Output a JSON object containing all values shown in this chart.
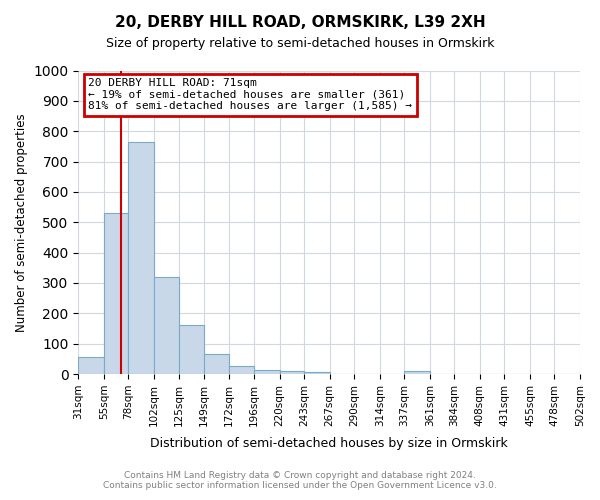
{
  "title": "20, DERBY HILL ROAD, ORMSKIRK, L39 2XH",
  "subtitle": "Size of property relative to semi-detached houses in Ormskirk",
  "xlabel": "Distribution of semi-detached houses by size in Ormskirk",
  "ylabel": "Number of semi-detached properties",
  "footer_line1": "Contains HM Land Registry data © Crown copyright and database right 2024.",
  "footer_line2": "Contains public sector information licensed under the Open Government Licence v3.0.",
  "bin_labels": [
    "31sqm",
    "55sqm",
    "78sqm",
    "102sqm",
    "125sqm",
    "149sqm",
    "172sqm",
    "196sqm",
    "220sqm",
    "243sqm",
    "267sqm",
    "290sqm",
    "314sqm",
    "337sqm",
    "361sqm",
    "384sqm",
    "408sqm",
    "431sqm",
    "455sqm",
    "478sqm",
    "502sqm"
  ],
  "bar_values": [
    55,
    530,
    765,
    320,
    160,
    65,
    28,
    12,
    10,
    8,
    0,
    0,
    0,
    10,
    0,
    0,
    0,
    0,
    0,
    0
  ],
  "bar_color": "#c8d8e8",
  "bar_edge_color": "#7aaac8",
  "grid_color": "#d0d8e0",
  "property_size": 71,
  "property_line_color": "#cc0000",
  "annotation_text": "20 DERBY HILL ROAD: 71sqm\n← 19% of semi-detached houses are smaller (361)\n81% of semi-detached houses are larger (1,585) →",
  "annotation_box_color": "#cc0000",
  "ylim": [
    0,
    1000
  ],
  "yticks": [
    0,
    100,
    200,
    300,
    400,
    500,
    600,
    700,
    800,
    900,
    1000
  ],
  "bin_edges": [
    31,
    55,
    78,
    102,
    125,
    149,
    172,
    196,
    220,
    243,
    267,
    290,
    314,
    337,
    361,
    384,
    408,
    431,
    455,
    478,
    502
  ]
}
